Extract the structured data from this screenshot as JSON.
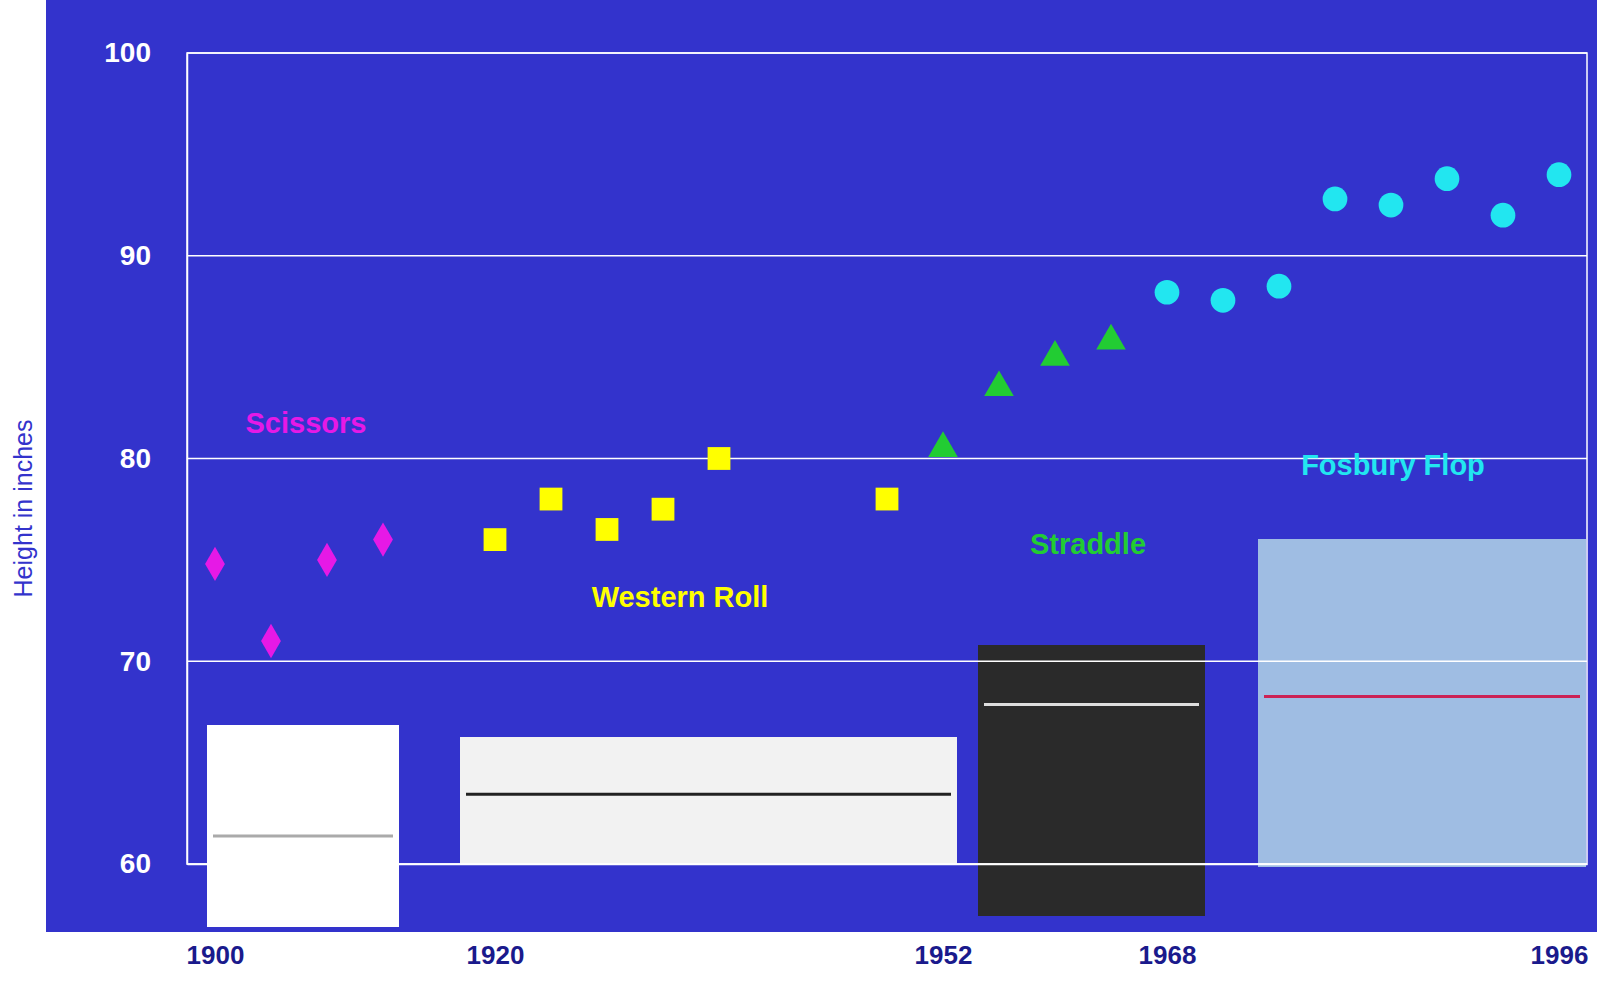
{
  "chart_data": {
    "type": "scatter",
    "y_label": "Height in inches",
    "xlim": [
      1898,
      1998
    ],
    "ylim": [
      60,
      100
    ],
    "xticks": [
      1900,
      1920,
      1952,
      1968,
      1996
    ],
    "yticks": [
      60,
      70,
      80,
      90,
      100
    ],
    "grid": true,
    "series": [
      {
        "name": "Scissors",
        "color": "#e619e6",
        "marker": "diamond",
        "x": [
          1900,
          1904,
          1908,
          1912
        ],
        "values": [
          74.8,
          71,
          75,
          76
        ]
      },
      {
        "name": "Western Roll",
        "color": "#ffff00",
        "marker": "square",
        "x": [
          1920,
          1924,
          1928,
          1932,
          1936,
          1948
        ],
        "values": [
          76,
          78,
          76.5,
          77.5,
          80,
          78
        ]
      },
      {
        "name": "Straddle",
        "color": "#22cc33",
        "marker": "triangle",
        "x": [
          1952,
          1956,
          1960,
          1964
        ],
        "values": [
          80.5,
          83.5,
          85,
          85.8
        ]
      },
      {
        "name": "Fosbury Flop",
        "color": "#22e6f0",
        "marker": "circle",
        "x": [
          1968,
          1972,
          1976,
          1980,
          1984,
          1988,
          1992,
          1996
        ],
        "values": [
          88.2,
          87.8,
          88.5,
          92.8,
          92.5,
          93.8,
          92,
          94
        ]
      }
    ]
  }
}
